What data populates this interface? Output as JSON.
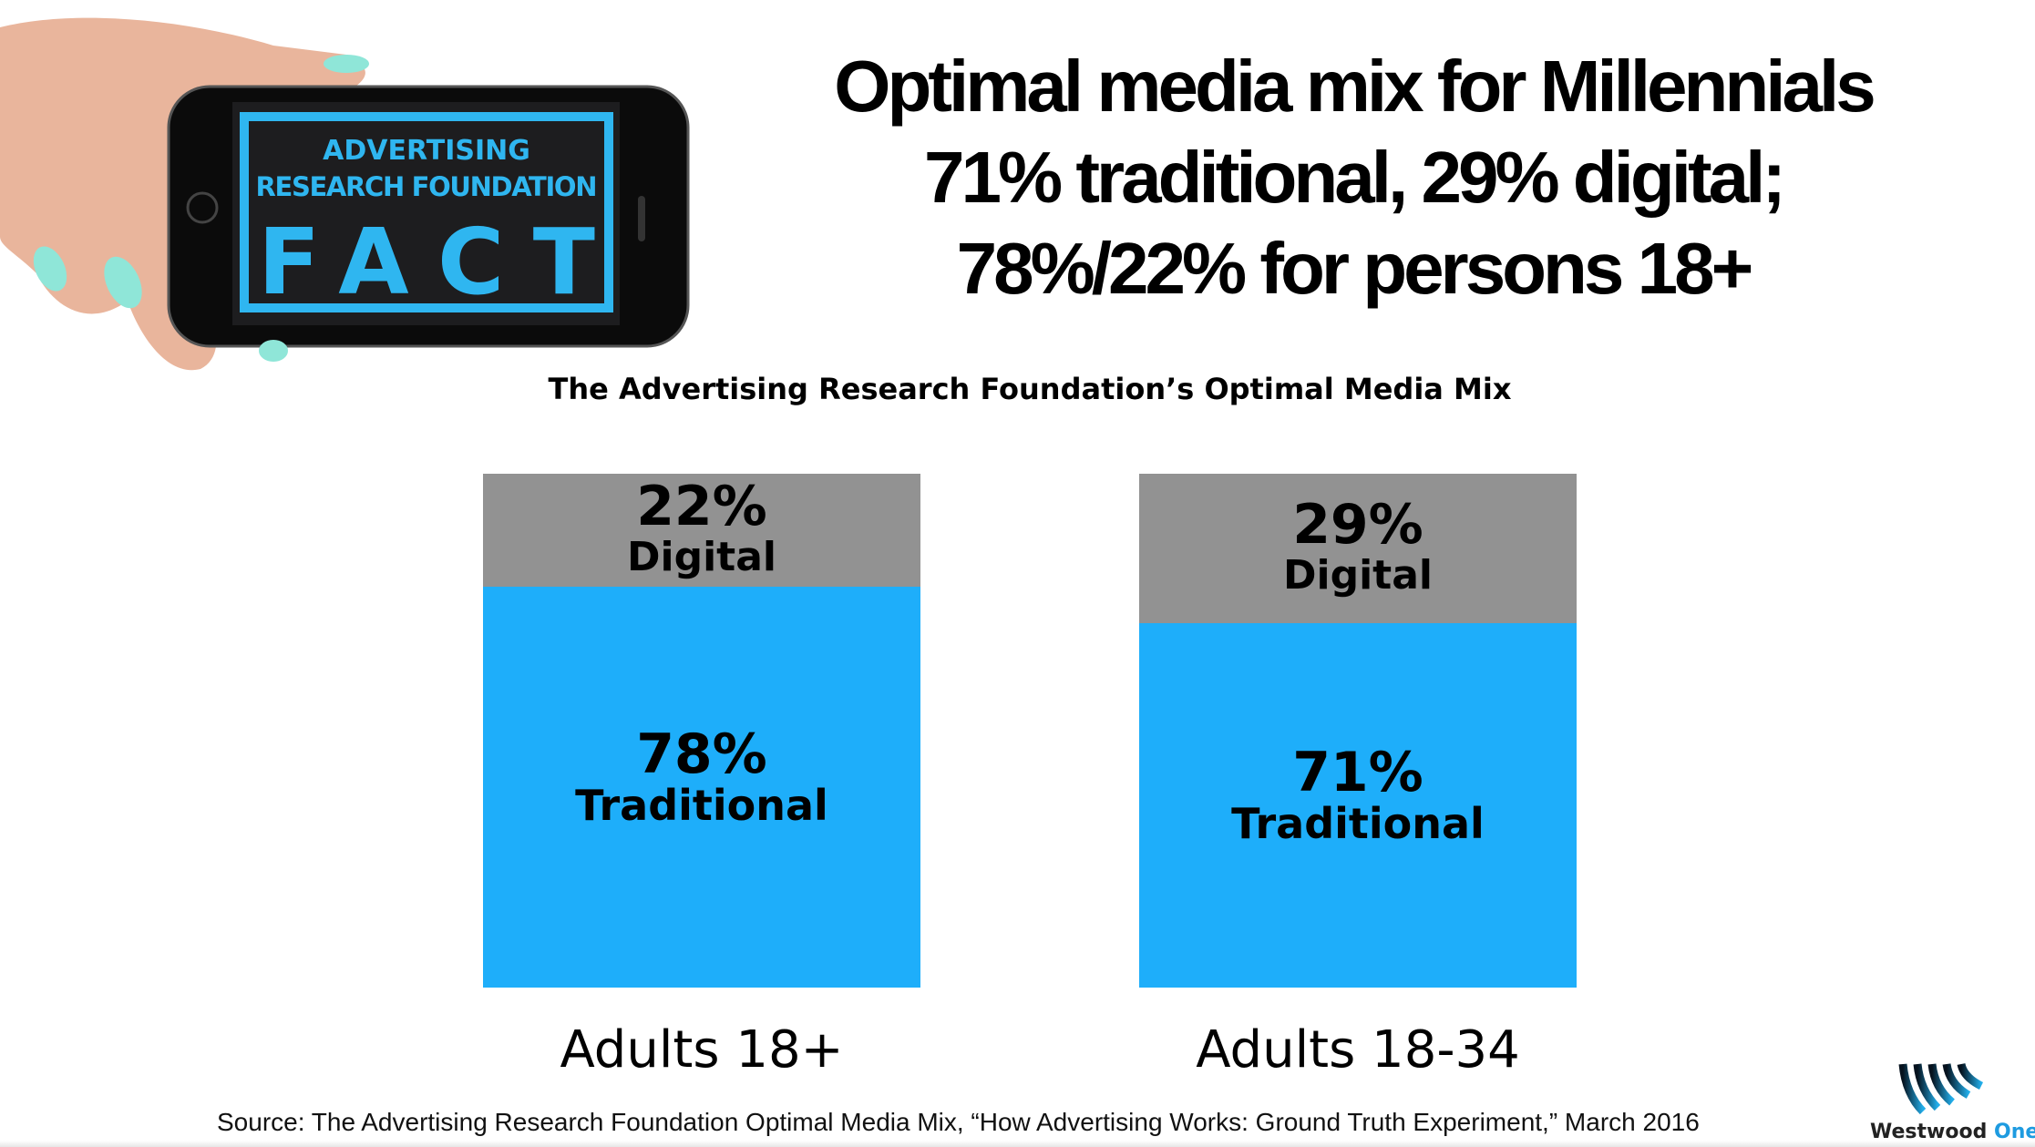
{
  "header": {
    "title_lines": [
      "Optimal media mix for Millennials",
      "71% traditional, 29% digital;",
      "78%/22% for persons 18+"
    ],
    "phone_screen_text": [
      "ADVERTISING",
      "RESEARCH FOUNDATION",
      "FACT"
    ]
  },
  "chart_data": {
    "type": "bar",
    "stacked": true,
    "title": "The Advertising Research Foundation’s Optimal Media Mix",
    "categories": [
      "Adults 18+",
      "Adults 18-34"
    ],
    "series": [
      {
        "name": "Traditional",
        "values": [
          78,
          71
        ],
        "labels": [
          "78%",
          "71%"
        ],
        "color": "#1eaefa"
      },
      {
        "name": "Digital",
        "values": [
          22,
          29
        ],
        "labels": [
          "22%",
          "29%"
        ],
        "color": "#929292"
      }
    ],
    "ylim": [
      0,
      100
    ]
  },
  "footer": {
    "source": "Source: The Advertising Research Foundation Optimal Media Mix, “How Advertising Works: Ground Truth Experiment,” March 2016",
    "logo_text_1": "Westwood",
    "logo_text_2": "One"
  }
}
